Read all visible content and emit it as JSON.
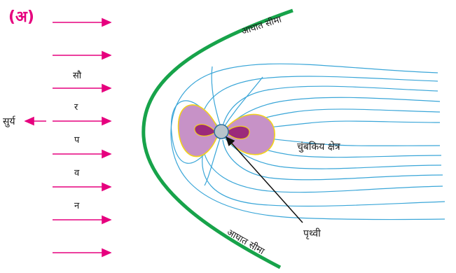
{
  "part_label": "(अ)",
  "sun_label": "सुर्य",
  "wind_letters": [
    "सौ",
    "र",
    "प",
    "व",
    "न"
  ],
  "shock_label_top": "आघात सीमा",
  "shock_label_bottom": "आघात सीमा",
  "field_label": "चुंबकिय क्षेत्र",
  "earth_label": "पृथ्वी",
  "colors": {
    "arrow": "#e6007e",
    "shock": "#17a34a",
    "field_line": "#3aa6d8",
    "belt_outer": "#c792c7",
    "belt_inner": "#9b2a7a",
    "belt_edge": "#f2d21b",
    "earth": "#b8c4cc"
  }
}
